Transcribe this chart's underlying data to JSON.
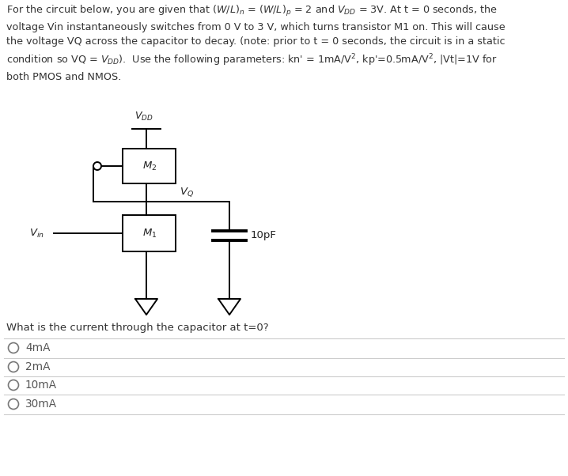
{
  "bg_color": "#ffffff",
  "text_color": "#333333",
  "line_color": "#000000",
  "question": "What is the current through the capacitor at t=0?",
  "choices": [
    "4mA",
    "2mA",
    "10mA",
    "30mA"
  ],
  "separator_color": "#cccccc",
  "radio_color": "#777777",
  "choice_text_color": "#555555",
  "circuit_line_color": "#000000",
  "label_color": "#222222"
}
